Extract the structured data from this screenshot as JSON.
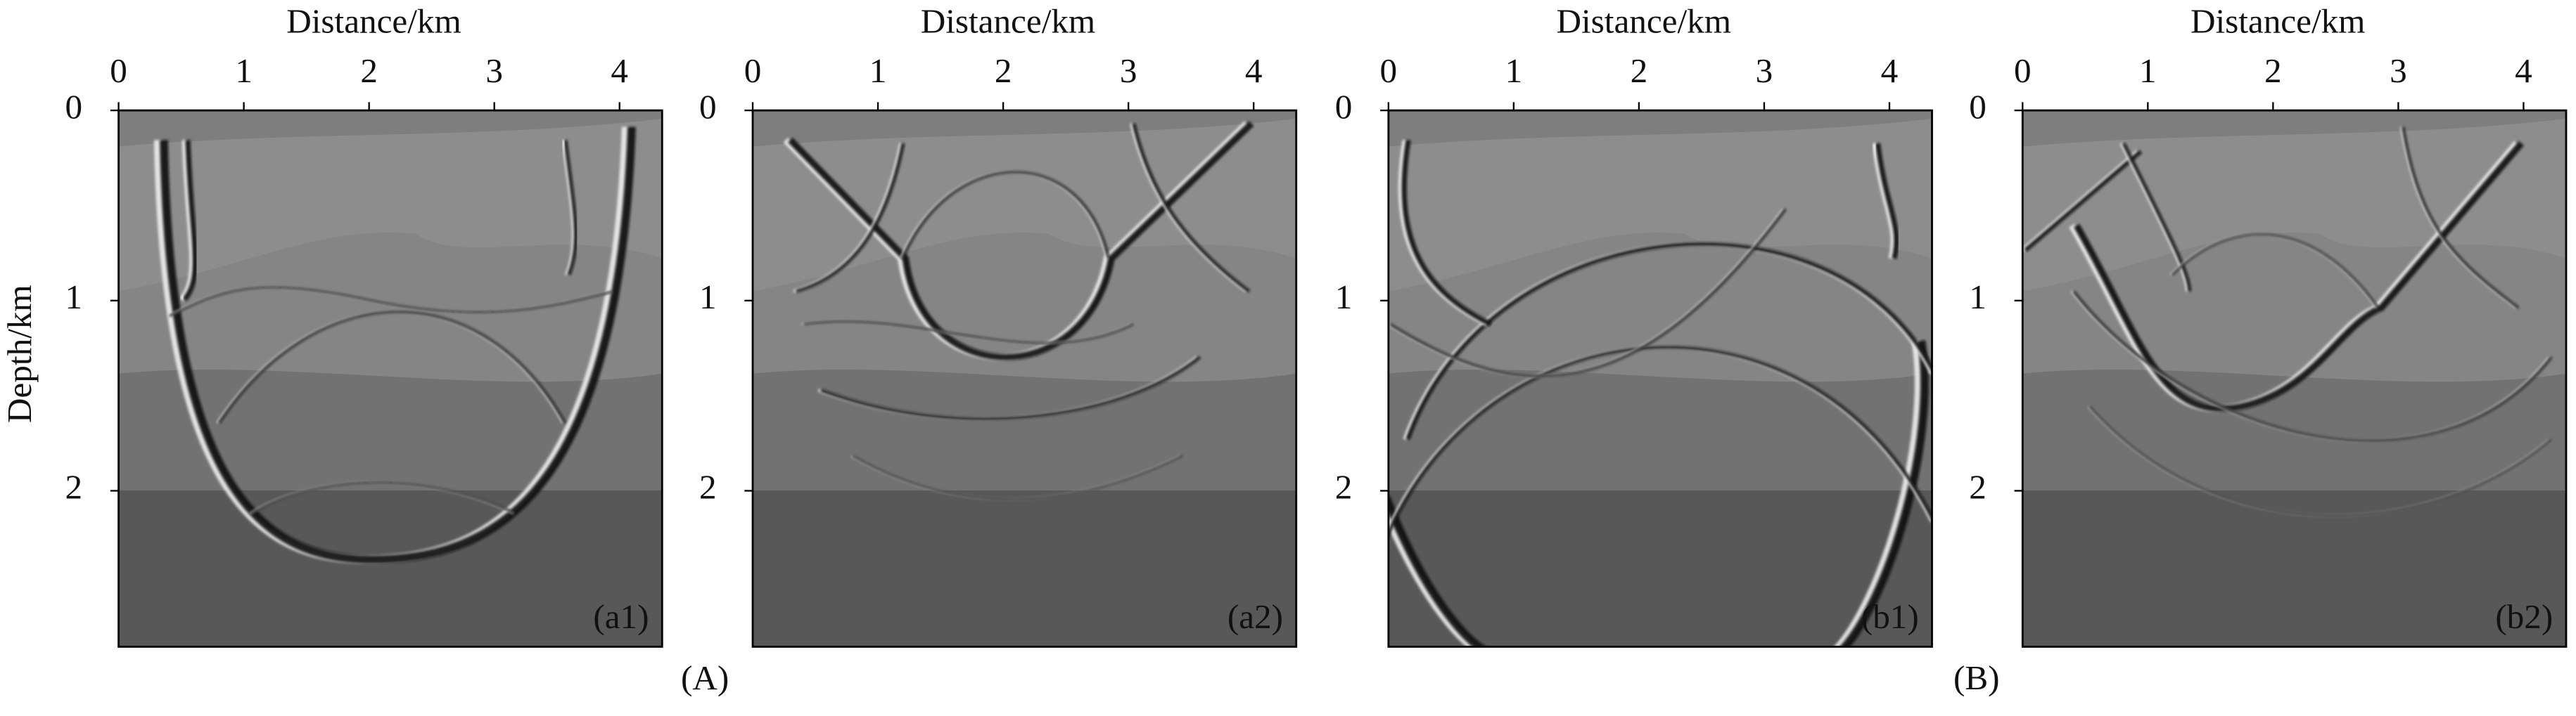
{
  "figure": {
    "y_label": "Depth/km",
    "group_labels": [
      "(A)",
      "(B)"
    ],
    "panels": [
      {
        "label": "(a1)",
        "x_label": "Distance/km",
        "xlim": [
          0,
          4.34
        ],
        "ylim": [
          0,
          2.82
        ],
        "xticks": [
          0,
          1,
          2,
          3,
          4
        ],
        "yticks": [
          0,
          1,
          2
        ]
      },
      {
        "label": "(a2)",
        "x_label": "Distance/km",
        "xlim": [
          0,
          4.34
        ],
        "ylim": [
          0,
          2.82
        ],
        "xticks": [
          0,
          1,
          2,
          3,
          4
        ],
        "yticks": [
          0,
          1,
          2
        ]
      },
      {
        "label": "(b1)",
        "x_label": "Distance/km",
        "xlim": [
          0,
          4.34
        ],
        "ylim": [
          0,
          2.82
        ],
        "xticks": [
          0,
          1,
          2,
          3,
          4
        ],
        "yticks": [
          0,
          1,
          2
        ]
      },
      {
        "label": "(b2)",
        "x_label": "Distance/km",
        "xlim": [
          0,
          4.34
        ],
        "ylim": [
          0,
          2.82
        ],
        "xticks": [
          0,
          1,
          2,
          3,
          4
        ],
        "yticks": [
          0,
          1,
          2
        ]
      }
    ]
  }
}
